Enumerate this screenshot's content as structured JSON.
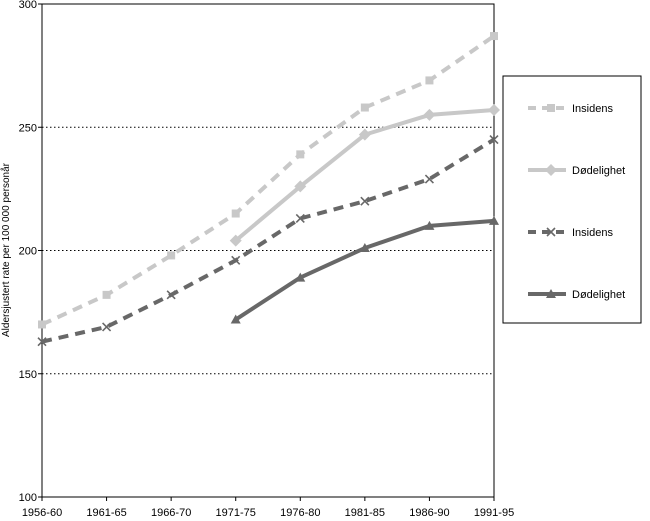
{
  "chart_data": {
    "type": "line",
    "categories": [
      "1956-60",
      "1961-65",
      "1966-70",
      "1971-75",
      "1976-80",
      "1981-85",
      "1986-90",
      "1991-95"
    ],
    "ylabel": "Aldersjustert rate per 100 000 personår",
    "xlabel": "",
    "ylim": [
      100,
      300
    ],
    "yticks": [
      100,
      150,
      200,
      250,
      300
    ],
    "grid": "horizontal dotted at 150, 200, 250",
    "legend_position": "right",
    "series": [
      {
        "name": "Insidens",
        "color": "#c8c8c8",
        "line_style": "dashed",
        "marker": "square",
        "values": [
          170,
          182,
          198,
          215,
          239,
          258,
          269,
          287
        ]
      },
      {
        "name": "Dødelighet",
        "color": "#c8c8c8",
        "line_style": "solid",
        "marker": "diamond",
        "values": [
          null,
          null,
          null,
          204,
          226,
          247,
          255,
          257
        ]
      },
      {
        "name": "Insidens",
        "color": "#686868",
        "line_style": "dashed",
        "marker": "x",
        "values": [
          163,
          169,
          182,
          196,
          213,
          220,
          229,
          245
        ]
      },
      {
        "name": "Dødelighet",
        "color": "#686868",
        "line_style": "solid",
        "marker": "triangle",
        "values": [
          null,
          null,
          null,
          172,
          189,
          201,
          210,
          212
        ]
      }
    ]
  }
}
